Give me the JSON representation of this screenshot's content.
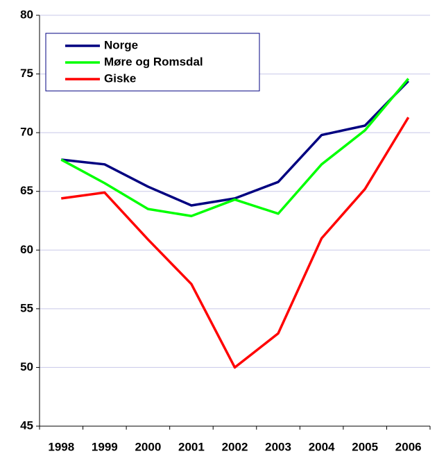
{
  "chart_data": {
    "type": "line",
    "categories": [
      "1998",
      "1999",
      "2000",
      "2001",
      "2002",
      "2003",
      "2004",
      "2005",
      "2006"
    ],
    "series": [
      {
        "name": "Norge",
        "color": "#000080",
        "values": [
          67.7,
          67.3,
          65.4,
          63.8,
          64.4,
          65.8,
          69.8,
          70.6,
          74.4
        ]
      },
      {
        "name": "Møre og Romsdal",
        "color": "#00ff00",
        "values": [
          67.7,
          65.7,
          63.5,
          62.9,
          64.3,
          63.1,
          67.3,
          70.2,
          74.6
        ]
      },
      {
        "name": "Giske",
        "color": "#ff0000",
        "values": [
          64.4,
          64.9,
          60.9,
          57.1,
          50.0,
          52.9,
          61.0,
          65.2,
          71.3
        ]
      }
    ],
    "ylim": [
      45,
      80
    ],
    "yticks": [
      45,
      50,
      55,
      60,
      65,
      70,
      75,
      80
    ],
    "grid": true,
    "legend": "top-left"
  }
}
